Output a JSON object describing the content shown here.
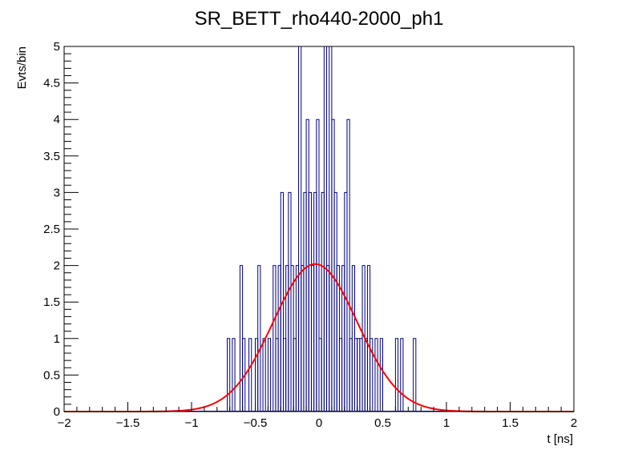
{
  "chart_data": {
    "type": "histogram",
    "title": "SR_BETT_rho440-2000_ph1",
    "xlabel": "t [ns]",
    "ylabel": "Evts/bin",
    "xlim": [
      -2,
      2
    ],
    "ylim": [
      0,
      5
    ],
    "bin_width": 0.02,
    "xticks": [
      -2,
      -1.5,
      -1,
      -0.5,
      0,
      0.5,
      1,
      1.5,
      2
    ],
    "xtick_labels": [
      "−2",
      "−1.5",
      "−1",
      "−0.5",
      "0",
      "0.5",
      "1",
      "1.5",
      "2"
    ],
    "yticks": [
      0,
      0.5,
      1,
      1.5,
      2,
      2.5,
      3,
      3.5,
      4,
      4.5,
      5
    ],
    "ytick_labels": [
      "0",
      "0.5",
      "1",
      "1.5",
      "2",
      "2.5",
      "3",
      "3.5",
      "4",
      "4.5",
      "5"
    ],
    "hist_color": "#000080",
    "fit_color": "#ff0000",
    "bins": [
      {
        "x": -0.72,
        "v": 1
      },
      {
        "x": -0.68,
        "v": 1
      },
      {
        "x": -0.62,
        "v": 2
      },
      {
        "x": -0.6,
        "v": 1
      },
      {
        "x": -0.55,
        "v": 1
      },
      {
        "x": -0.5,
        "v": 1
      },
      {
        "x": -0.48,
        "v": 2
      },
      {
        "x": -0.44,
        "v": 1
      },
      {
        "x": -0.4,
        "v": 1
      },
      {
        "x": -0.36,
        "v": 2
      },
      {
        "x": -0.34,
        "v": 1
      },
      {
        "x": -0.32,
        "v": 2
      },
      {
        "x": -0.3,
        "v": 3
      },
      {
        "x": -0.28,
        "v": 1
      },
      {
        "x": -0.26,
        "v": 2
      },
      {
        "x": -0.24,
        "v": 3
      },
      {
        "x": -0.22,
        "v": 2
      },
      {
        "x": -0.2,
        "v": 1
      },
      {
        "x": -0.18,
        "v": 2
      },
      {
        "x": -0.16,
        "v": 5
      },
      {
        "x": -0.14,
        "v": 2
      },
      {
        "x": -0.12,
        "v": 3
      },
      {
        "x": -0.1,
        "v": 4
      },
      {
        "x": -0.08,
        "v": 3
      },
      {
        "x": -0.06,
        "v": 2
      },
      {
        "x": -0.04,
        "v": 3
      },
      {
        "x": -0.02,
        "v": 4
      },
      {
        "x": 0.0,
        "v": 1
      },
      {
        "x": 0.02,
        "v": 3
      },
      {
        "x": 0.04,
        "v": 5
      },
      {
        "x": 0.06,
        "v": 2
      },
      {
        "x": 0.08,
        "v": 5
      },
      {
        "x": 0.1,
        "v": 4
      },
      {
        "x": 0.12,
        "v": 3
      },
      {
        "x": 0.14,
        "v": 2
      },
      {
        "x": 0.16,
        "v": 1
      },
      {
        "x": 0.18,
        "v": 2
      },
      {
        "x": 0.2,
        "v": 3
      },
      {
        "x": 0.22,
        "v": 4
      },
      {
        "x": 0.24,
        "v": 1
      },
      {
        "x": 0.26,
        "v": 2
      },
      {
        "x": 0.28,
        "v": 1
      },
      {
        "x": 0.3,
        "v": 1
      },
      {
        "x": 0.32,
        "v": 1
      },
      {
        "x": 0.34,
        "v": 2
      },
      {
        "x": 0.36,
        "v": 1
      },
      {
        "x": 0.38,
        "v": 2
      },
      {
        "x": 0.4,
        "v": 1
      },
      {
        "x": 0.44,
        "v": 1
      },
      {
        "x": 0.48,
        "v": 1
      },
      {
        "x": 0.6,
        "v": 1
      },
      {
        "x": 0.64,
        "v": 1
      },
      {
        "x": 0.74,
        "v": 1
      }
    ],
    "fit": {
      "function": "gaussian",
      "amplitude": 2.02,
      "mean": -0.03,
      "sigma": 0.33
    }
  }
}
